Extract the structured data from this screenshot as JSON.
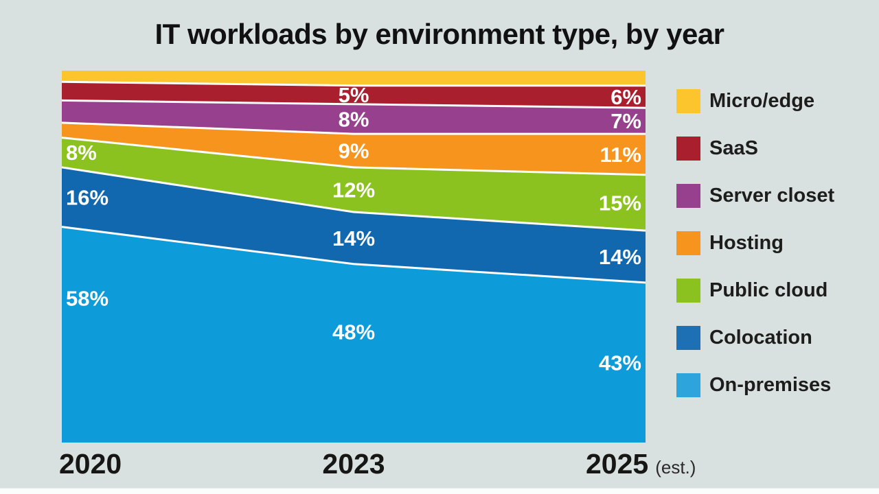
{
  "title": "IT workloads by environment type, by year",
  "axis": {
    "labels": [
      {
        "text": "2020",
        "suffix": ""
      },
      {
        "text": "2023",
        "suffix": ""
      },
      {
        "text": "2025",
        "suffix": "(est.)"
      }
    ]
  },
  "legend": {
    "position": "right",
    "items": [
      {
        "label": "Micro/edge",
        "color": "#fcc52d"
      },
      {
        "label": "SaaS",
        "color": "#a91f2d"
      },
      {
        "label": "Server closet",
        "color": "#97418e"
      },
      {
        "label": "Hosting",
        "color": "#f7941e"
      },
      {
        "label": "Public cloud",
        "color": "#8cc21f"
      },
      {
        "label": "Colocation",
        "color": "#1c70b3"
      },
      {
        "label": "On-premises",
        "color": "#2ea4dc"
      }
    ]
  },
  "colors": {
    "background": "#d8e0e0",
    "divider": "#ffffff",
    "value_label": "#ffffff",
    "text": "#1d1d1b"
  },
  "chart_data": {
    "type": "area",
    "stacked": true,
    "unit": "%",
    "categories": [
      "2020",
      "2023",
      "2025 (est.)"
    ],
    "ylim": [
      0,
      100
    ],
    "grid": false,
    "legend_position": "right",
    "series_top_to_bottom": [
      {
        "name": "Micro/edge",
        "color": "#fcc52d",
        "values": [
          3,
          4,
          4
        ],
        "labels": [
          "",
          "",
          ""
        ]
      },
      {
        "name": "SaaS",
        "color": "#a91f2d",
        "values": [
          5,
          5,
          6
        ],
        "labels": [
          "",
          "5%",
          "6%"
        ]
      },
      {
        "name": "Server closet",
        "color": "#97418e",
        "values": [
          6,
          8,
          7
        ],
        "labels": [
          "",
          "8%",
          "7%"
        ]
      },
      {
        "name": "Hosting",
        "color": "#f7941e",
        "values": [
          4,
          9,
          11
        ],
        "labels": [
          "",
          "9%",
          "11%"
        ]
      },
      {
        "name": "Public cloud",
        "color": "#8cc21f",
        "values": [
          8,
          12,
          15
        ],
        "labels": [
          "8%",
          "12%",
          "15%"
        ]
      },
      {
        "name": "Colocation",
        "color": "#1268ae",
        "values": [
          16,
          14,
          14
        ],
        "labels": [
          "16%",
          "14%",
          "14%"
        ]
      },
      {
        "name": "On-premises",
        "color": "#0d9bd9",
        "values": [
          58,
          48,
          43
        ],
        "labels": [
          "58%",
          "48%",
          "43%"
        ]
      }
    ]
  }
}
